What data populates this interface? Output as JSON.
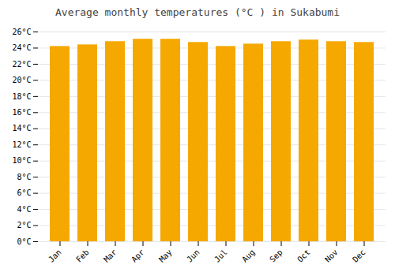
{
  "chart_data": {
    "type": "bar",
    "title": "Average monthly temperatures (°C ) in Sukabumi",
    "categories": [
      "Jan",
      "Feb",
      "Mar",
      "Apr",
      "May",
      "Jun",
      "Jul",
      "Aug",
      "Sep",
      "Oct",
      "Nov",
      "Dec"
    ],
    "values": [
      24.2,
      24.4,
      24.8,
      25.1,
      25.1,
      24.7,
      24.2,
      24.5,
      24.8,
      25.0,
      24.8,
      24.7
    ],
    "color": "#F5A800",
    "ylim": [
      0,
      26
    ],
    "yticks": [
      {
        "value": 0,
        "label": "0°C"
      },
      {
        "value": 2,
        "label": "2°C"
      },
      {
        "value": 4,
        "label": "4°C"
      },
      {
        "value": 6,
        "label": "6°C"
      },
      {
        "value": 8,
        "label": "8°C"
      },
      {
        "value": 10,
        "label": "10°C"
      },
      {
        "value": 12,
        "label": "12°C"
      },
      {
        "value": 14,
        "label": "14°C"
      },
      {
        "value": 16,
        "label": "16°C"
      },
      {
        "value": 18,
        "label": "18°C"
      },
      {
        "value": 20,
        "label": "20°C"
      },
      {
        "value": 22,
        "label": "22°C"
      },
      {
        "value": 24,
        "label": "24°C"
      },
      {
        "value": 26,
        "label": "26°C"
      }
    ],
    "grid": true
  }
}
